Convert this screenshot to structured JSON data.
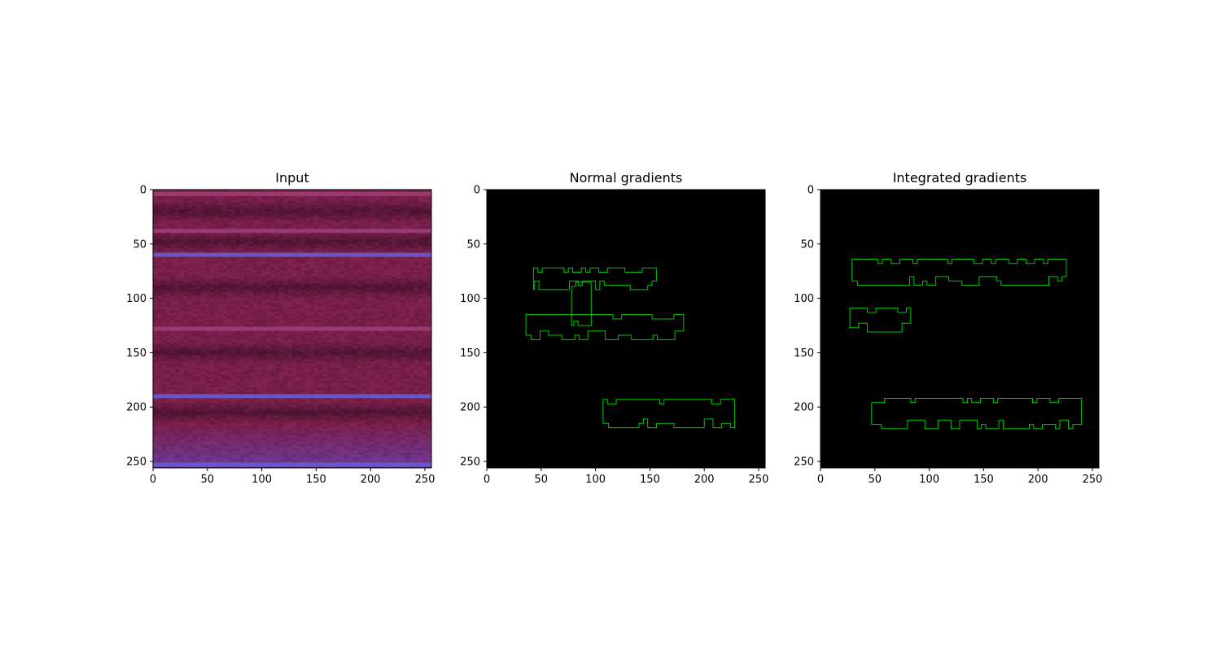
{
  "chart_data": [
    {
      "type": "heatmap",
      "title": "Input",
      "xlim": [
        0,
        256
      ],
      "ylim": [
        256,
        0
      ],
      "xticks": [
        0,
        50,
        100,
        150,
        200,
        250
      ],
      "yticks": [
        0,
        50,
        100,
        150,
        200,
        250
      ],
      "grid": false,
      "image": {
        "colors": {
          "base": "#7a1e4a",
          "dark": "#2a0a1e",
          "band": "#a0407a",
          "bright_band": "#6a5ad0",
          "bottom": "#6a40b0"
        },
        "bright_bands_y": [
          4,
          38,
          60,
          128,
          190,
          253
        ],
        "dark_bands_y": [
          20,
          48,
          90,
          150,
          205
        ]
      }
    },
    {
      "type": "heatmap",
      "title": "Normal gradients",
      "xlim": [
        0,
        256
      ],
      "ylim": [
        256,
        0
      ],
      "xticks": [
        0,
        50,
        100,
        150,
        200,
        250
      ],
      "yticks": [
        0,
        50,
        100,
        150,
        200,
        250
      ],
      "grid": false,
      "background": "#000000",
      "contour_color": "#00c800",
      "regions": [
        {
          "x": [
            43,
            156
          ],
          "y": [
            72,
            92
          ]
        },
        {
          "x": [
            78,
            96
          ],
          "y": [
            85,
            125
          ]
        },
        {
          "x": [
            36,
            181
          ],
          "y": [
            115,
            138
          ]
        },
        {
          "x": [
            107,
            228
          ],
          "y": [
            193,
            219
          ]
        }
      ]
    },
    {
      "type": "heatmap",
      "title": "Integrated gradients",
      "xlim": [
        0,
        256
      ],
      "ylim": [
        256,
        0
      ],
      "xticks": [
        0,
        50,
        100,
        150,
        200,
        250
      ],
      "yticks": [
        0,
        50,
        100,
        150,
        200,
        250
      ],
      "grid": false,
      "background": "#000000",
      "contour_color": "#00c800",
      "regions": [
        {
          "x": [
            29,
            226
          ],
          "y": [
            64,
            88
          ]
        },
        {
          "x": [
            27,
            83
          ],
          "y": [
            109,
            131
          ]
        },
        {
          "x": [
            47,
            240
          ],
          "y": [
            192,
            220
          ]
        }
      ]
    }
  ]
}
